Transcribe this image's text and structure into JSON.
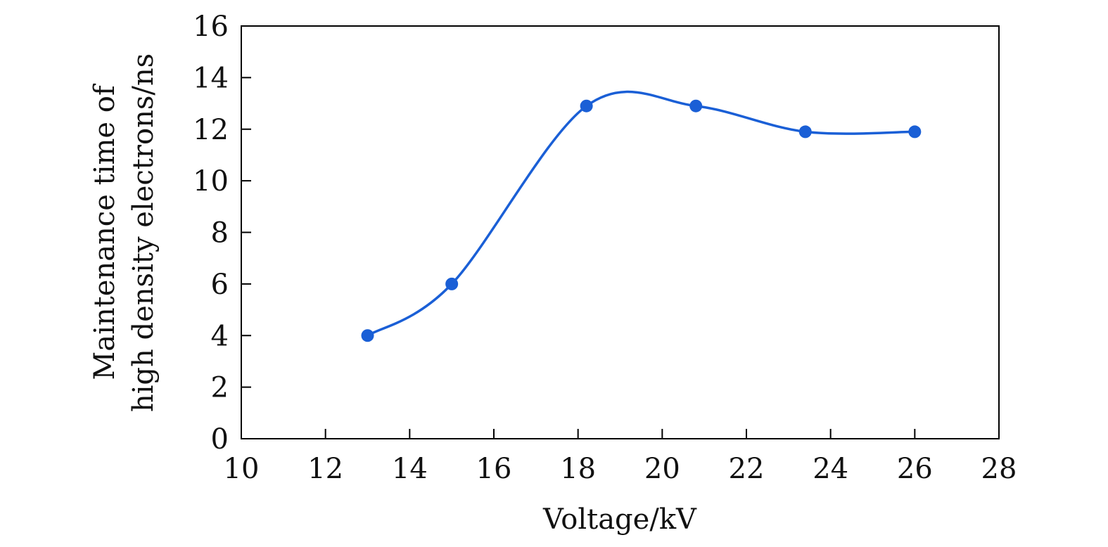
{
  "chart_data": {
    "type": "line",
    "xlabel": "Voltage/kV",
    "ylabel_lines": [
      "Maintenance time of",
      "high density electrons/ns"
    ],
    "xlim": [
      10,
      28
    ],
    "ylim": [
      0,
      16
    ],
    "xticks": [
      10,
      12,
      14,
      16,
      18,
      20,
      22,
      24,
      26,
      28
    ],
    "yticks": [
      0,
      2,
      4,
      6,
      8,
      10,
      12,
      14,
      16
    ],
    "grid": false,
    "series": [
      {
        "color": "#1a5fd6",
        "x": [
          13.0,
          15.0,
          18.2,
          20.8,
          23.4,
          26.0
        ],
        "y": [
          4.0,
          6.0,
          12.9,
          12.9,
          11.9,
          11.9
        ]
      }
    ]
  }
}
